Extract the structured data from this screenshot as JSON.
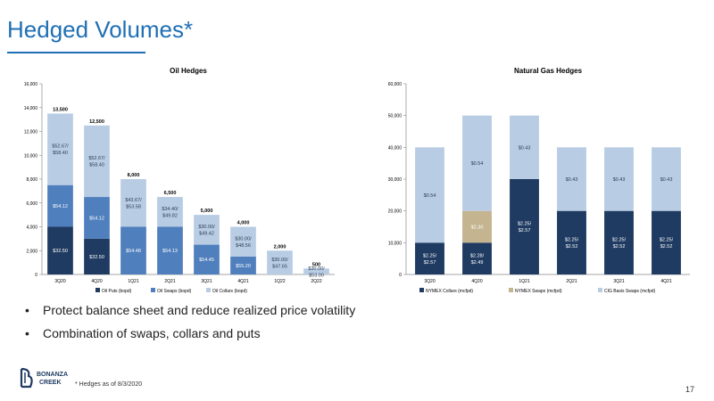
{
  "slide": {
    "title": "Hedged Volumes*",
    "bullets": [
      "Protect balance sheet and reduce realized price volatility",
      "Combination of swaps, collars and puts"
    ],
    "footnote": "* Hedges as of 8/3/2020",
    "page_number": "17",
    "logo": {
      "line1": "BONANZA",
      "line2": "CREEK"
    }
  },
  "colors": {
    "title": "#1f6fb4",
    "dark": "#1f3b62",
    "mid": "#4f7fbd",
    "light": "#b8cce4",
    "tan": "#c4b48f"
  },
  "chart_data": [
    {
      "type": "bar",
      "title": "Oil Hedges",
      "stacked": true,
      "categories": [
        "3Q20",
        "4Q20",
        "1Q21",
        "2Q21",
        "3Q21",
        "4Q21",
        "1Q22",
        "2Q22"
      ],
      "ylim": [
        0,
        16000
      ],
      "yticks": [
        "0",
        "2,000",
        "4,000",
        "6,000",
        "8,000",
        "10,000",
        "12,000",
        "14,000",
        "16,000"
      ],
      "totals": [
        "13,500",
        "12,500",
        "8,000",
        "6,500",
        "5,000",
        "4,000",
        "2,000",
        "500"
      ],
      "series": [
        {
          "name": "Oil Puts (bopd)",
          "color": "#1f3b62",
          "values": [
            4000,
            3000,
            0,
            0,
            0,
            0,
            0,
            0
          ],
          "labels": [
            "$32.50",
            "$32.50",
            "",
            "",
            "",
            "",
            "",
            ""
          ]
        },
        {
          "name": "Oil Swaps (bopd)",
          "color": "#4f7fbd",
          "values": [
            3500,
            3500,
            4000,
            4000,
            2500,
            1500,
            0,
            0
          ],
          "labels": [
            "$54.12",
            "$54.12",
            "$54.48",
            "$54.13",
            "$54.45",
            "$55.20",
            "",
            ""
          ]
        },
        {
          "name": "Oil Collars (bopd)",
          "color": "#b8cce4",
          "values": [
            6000,
            6000,
            4000,
            2500,
            2500,
            2500,
            2000,
            500
          ],
          "labels": [
            "$52.67/\n$58.40",
            "$52.67/\n$58.40",
            "$43.67/\n$53.58",
            "$34.40/\n$49.82",
            "$30.00/\n$49.42",
            "$30.00/\n$48.56",
            "$30.00/\n$47.65",
            "$30.00/\n$53.00"
          ]
        }
      ]
    },
    {
      "type": "bar",
      "title": "Natural Gas Hedges",
      "stacked": true,
      "categories": [
        "3Q20",
        "4Q20",
        "1Q21",
        "2Q21",
        "3Q21",
        "4Q21"
      ],
      "ylim": [
        0,
        60000
      ],
      "yticks": [
        "0",
        "10,000",
        "20,000",
        "30,000",
        "40,000",
        "50,000",
        "60,000"
      ],
      "series": [
        {
          "name": "NYMEX Collars (mcfpd)",
          "color": "#1f3b62",
          "values": [
            10000,
            10000,
            30000,
            20000,
            20000,
            20000
          ],
          "labels": [
            "$2.25/\n$2.57",
            "$2.28/\n$2.49",
            "$2.25/\n$2.57",
            "$2.25/\n$2.52",
            "$2.25/\n$2.52",
            "$2.25/\n$2.52"
          ]
        },
        {
          "name": "NYMEX Swaps (mcfpd)",
          "color": "#c4b48f",
          "values": [
            0,
            10000,
            0,
            0,
            0,
            0
          ],
          "labels": [
            "",
            "$2.30",
            "",
            "",
            "",
            ""
          ]
        },
        {
          "name": "CIG Basis Swaps (mcfpd)",
          "color": "#b8cce4",
          "values": [
            30000,
            30000,
            20000,
            20000,
            20000,
            20000
          ],
          "labels": [
            "$0.54",
            "$0.54",
            "$0.43",
            "$0.43",
            "$0.43",
            "$0.43"
          ]
        }
      ]
    }
  ]
}
